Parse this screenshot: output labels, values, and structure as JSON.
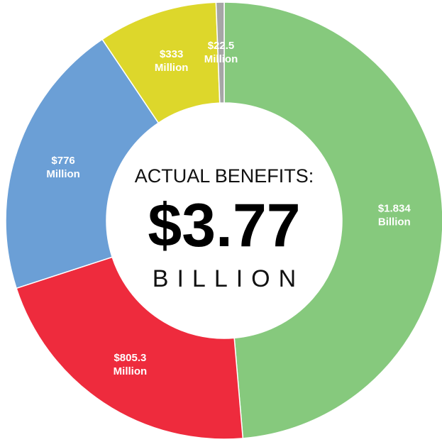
{
  "chart_data": {
    "type": "pie",
    "style": "donut",
    "center": {
      "title": "ACTUAL BENEFITS:",
      "total": "$3.77",
      "unit": "BILLION"
    },
    "slices": [
      {
        "label_line1": "$1.834",
        "label_line2": "Billion",
        "value": 1834,
        "color": "#86c97d"
      },
      {
        "label_line1": "$805.3",
        "label_line2": "Million",
        "value": 805.3,
        "color": "#ee2b3d"
      },
      {
        "label_line1": "$776",
        "label_line2": "Million",
        "value": 776,
        "color": "#6b9fd6"
      },
      {
        "label_line1": "$333",
        "label_line2": "Million",
        "value": 333,
        "color": "#ddd72b"
      },
      {
        "label_line1": "$22.5",
        "label_line2": "Million",
        "value": 22.5,
        "color": "#a6a6a6"
      }
    ]
  }
}
